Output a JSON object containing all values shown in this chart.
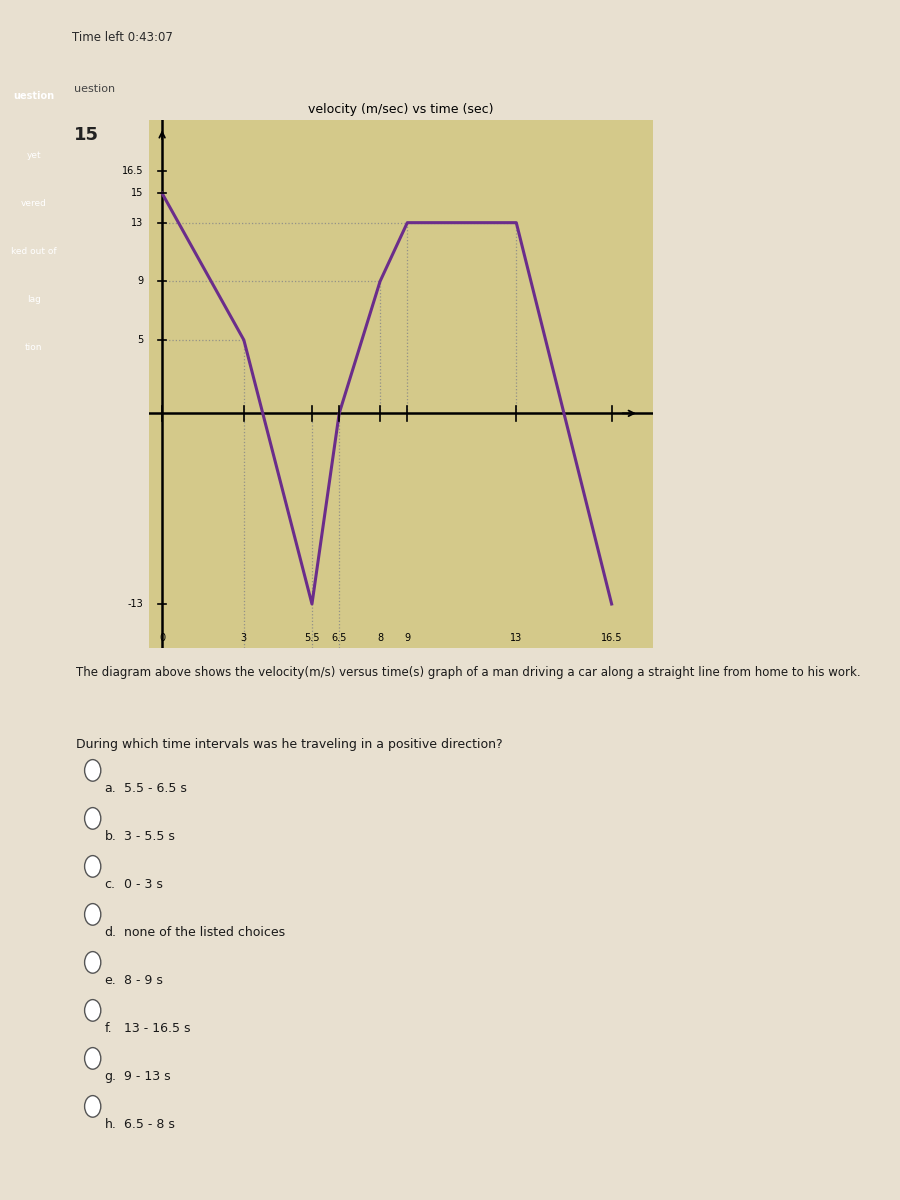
{
  "title": "velocity (m/sec) vs time (sec)",
  "graph_bg": "#d4c98a",
  "page_bg": "#c8bfa0",
  "content_bg": "#e8e0d0",
  "white_bg": "#ddd8cc",
  "line_color": "#6b2d8b",
  "line_width": 2.2,
  "time_points": [
    0,
    3,
    5.5,
    6.5,
    8,
    9,
    13,
    16.5
  ],
  "velocity_points": [
    15,
    5,
    -13,
    0,
    9,
    13,
    13,
    -13
  ],
  "xlim": [
    -0.5,
    18
  ],
  "ylim": [
    -16,
    20
  ],
  "xtick_labels": [
    "0",
    "3",
    "5.5",
    "6.5",
    "8",
    "9",
    "13",
    "16.5"
  ],
  "xtick_vals": [
    0,
    3,
    5.5,
    6.5,
    8,
    9,
    13,
    16.5
  ],
  "ytick_labels": [
    "-13",
    "5",
    "9",
    "13",
    "15",
    "16.5"
  ],
  "ytick_vals": [
    -13,
    5,
    9,
    13,
    15,
    16.5
  ],
  "timer_text": "Time left 0:43:07",
  "question_number": "15",
  "question_text": "The diagram above shows the velocity(m/s) versus time(s) graph of a man driving a car along a straight line from home to his work.",
  "question_prompt": "During which time intervals was he traveling in a positive direction?",
  "choices": [
    [
      "a.",
      "5.5 - 6.5 s"
    ],
    [
      "b.",
      "3 - 5.5 s"
    ],
    [
      "c.",
      "0 - 3 s"
    ],
    [
      "d.",
      "none of the listed choices"
    ],
    [
      "e.",
      "8 - 9 s"
    ],
    [
      "f.",
      "13 - 16.5 s"
    ],
    [
      "g.",
      "9 - 13 s"
    ],
    [
      "h.",
      "6.5 - 8 s"
    ]
  ],
  "sidebar_items": [
    "uestion",
    "yet",
    "vered",
    "ked out of",
    "lag",
    "tion"
  ],
  "sidebar_bg": "#7a7a7a",
  "right_edge_color": "#1a1a1a"
}
